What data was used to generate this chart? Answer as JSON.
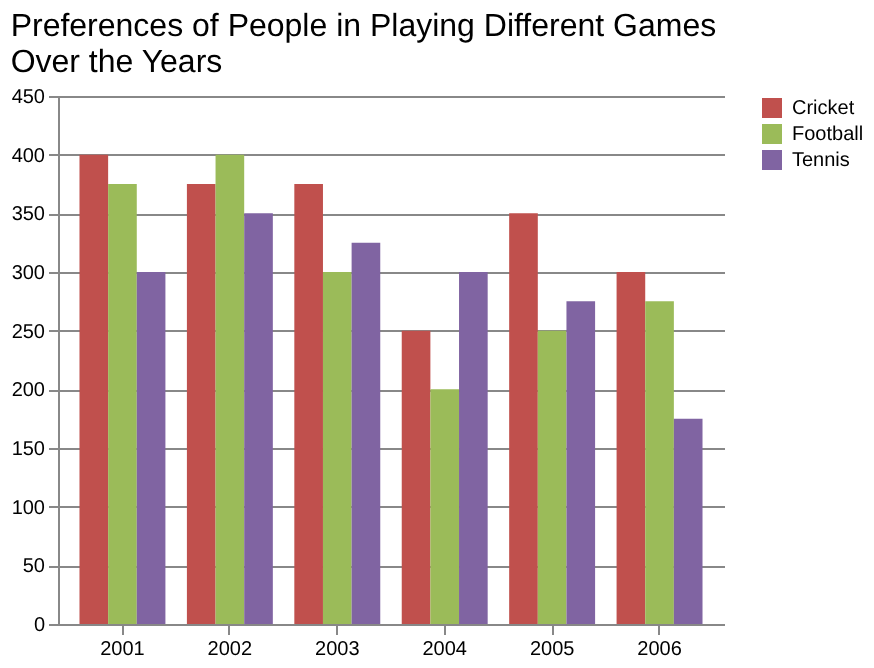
{
  "chart_data": {
    "type": "bar",
    "title": "Preferences of People in Playing Different Games Over the Years",
    "categories": [
      "2001",
      "2002",
      "2003",
      "2004",
      "2005",
      "2006"
    ],
    "series": [
      {
        "name": "Cricket",
        "color": "#c0504d",
        "values": [
          400,
          375,
          375,
          250,
          350,
          300
        ]
      },
      {
        "name": "Football",
        "color": "#9bbb59",
        "values": [
          375,
          400,
          300,
          200,
          250,
          275
        ]
      },
      {
        "name": "Tennis",
        "color": "#8064a2",
        "values": [
          300,
          350,
          325,
          300,
          275,
          175
        ]
      }
    ],
    "ylim": [
      0,
      450
    ],
    "yticks": [
      0,
      50,
      100,
      150,
      200,
      250,
      300,
      350,
      400,
      450
    ],
    "grid": "y",
    "legend": "right"
  }
}
